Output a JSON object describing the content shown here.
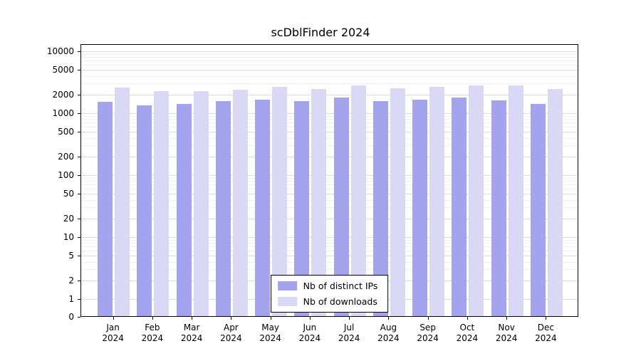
{
  "chart_data": {
    "type": "bar",
    "title": "scDblFinder 2024",
    "categories": [
      "Jan",
      "Feb",
      "Mar",
      "Apr",
      "May",
      "Jun",
      "Jul",
      "Aug",
      "Sep",
      "Oct",
      "Nov",
      "Dec"
    ],
    "year_label": "2024",
    "series": [
      {
        "name": "Nb of distinct IPs",
        "color": "#a3a3ee",
        "values": [
          1520,
          1350,
          1420,
          1560,
          1640,
          1550,
          1800,
          1560,
          1660,
          1780,
          1620,
          1430
        ]
      },
      {
        "name": "Nb of downloads",
        "color": "#d9d9f6",
        "values": [
          2620,
          2280,
          2300,
          2420,
          2650,
          2480,
          2810,
          2500,
          2650,
          2800,
          2790,
          2450
        ]
      }
    ],
    "y_scale": "symlog",
    "y_ticks": [
      0,
      1,
      2,
      5,
      10,
      20,
      50,
      100,
      200,
      500,
      1000,
      2000,
      5000,
      10000
    ],
    "y_minor_ticks": [
      3,
      4,
      6,
      7,
      8,
      9,
      30,
      40,
      60,
      70,
      80,
      90,
      300,
      400,
      600,
      700,
      800,
      900,
      3000,
      4000,
      6000,
      7000,
      8000,
      9000
    ],
    "y_range": [
      0,
      13000
    ],
    "grid": true,
    "legend": {
      "position": "bottom-center-inside",
      "entries": [
        "Nb of distinct IPs",
        "Nb of downloads"
      ]
    }
  }
}
